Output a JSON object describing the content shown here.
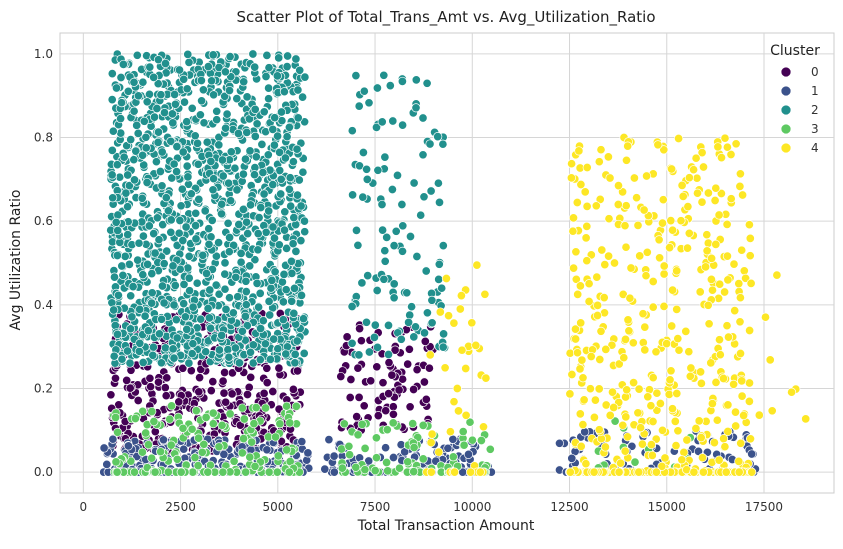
{
  "chart_data": {
    "type": "scatter",
    "title": "Scatter Plot of Total_Trans_Amt vs. Avg_Utilization_Ratio",
    "xlabel": "Total Transaction Amount",
    "ylabel": "Avg Utilization Ratio",
    "xlim": [
      -600,
      19300
    ],
    "ylim": [
      -0.05,
      1.05
    ],
    "xticks": [
      0,
      2500,
      5000,
      7500,
      10000,
      12500,
      15000,
      17500
    ],
    "xtick_labels": [
      "0",
      "2500",
      "5000",
      "7500",
      "10000",
      "12500",
      "15000",
      "17500"
    ],
    "yticks": [
      0.0,
      0.2,
      0.4,
      0.6,
      0.8,
      1.0
    ],
    "ytick_labels": [
      "0.0",
      "0.2",
      "0.4",
      "0.6",
      "0.8",
      "1.0"
    ],
    "grid": true,
    "legend": {
      "title": "Cluster",
      "placement": "top-right"
    },
    "series": [
      {
        "name": "0",
        "color": "#440154",
        "regions": [
          {
            "x": [
              700,
              5600
            ],
            "y": [
              0.05,
              0.38
            ],
            "n": 420
          },
          {
            "x": [
              6600,
              9000
            ],
            "y": [
              0.1,
              0.36
            ],
            "n": 90
          }
        ]
      },
      {
        "name": "1",
        "color": "#3b528b",
        "regions": [
          {
            "x": [
              500,
              5800
            ],
            "y": [
              0.0,
              0.08
            ],
            "n": 260
          },
          {
            "x": [
              6200,
              10500
            ],
            "y": [
              0.0,
              0.08
            ],
            "n": 110
          },
          {
            "x": [
              12200,
              17300
            ],
            "y": [
              0.0,
              0.1
            ],
            "n": 110
          }
        ]
      },
      {
        "name": "2",
        "color": "#21908d",
        "regions": [
          {
            "x": [
              700,
              5700
            ],
            "y": [
              0.26,
              1.0
            ],
            "n": 1400
          },
          {
            "x": [
              6900,
              9300
            ],
            "y": [
              0.28,
              0.95
            ],
            "n": 120
          }
        ]
      },
      {
        "name": "3",
        "color": "#5ec962",
        "regions": [
          {
            "x": [
              700,
              5600
            ],
            "y": [
              0.0,
              0.16
            ],
            "n": 170
          },
          {
            "x": [
              6600,
              10500
            ],
            "y": [
              0.0,
              0.12
            ],
            "n": 80
          },
          {
            "x": [
              13000,
              15800
            ],
            "y": [
              0.0,
              0.13
            ],
            "n": 20
          }
        ]
      },
      {
        "name": "4",
        "color": "#fde725",
        "regions": [
          {
            "x": [
              8800,
              10400
            ],
            "y": [
              0.0,
              0.5
            ],
            "n": 40
          },
          {
            "x": [
              12500,
              17200
            ],
            "y": [
              0.0,
              0.8
            ],
            "n": 560
          },
          {
            "x": [
              17200,
              18600
            ],
            "y": [
              0.1,
              0.48
            ],
            "n": 8
          }
        ]
      }
    ]
  }
}
